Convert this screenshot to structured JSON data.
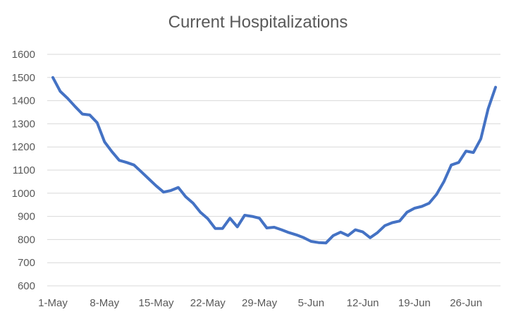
{
  "chart_data": {
    "type": "line",
    "title": "Current Hospitalizations",
    "xlabel": "",
    "ylabel": "",
    "ylim": [
      600,
      1600
    ],
    "y_ticks": [
      600,
      700,
      800,
      900,
      1000,
      1100,
      1200,
      1300,
      1400,
      1500,
      1600
    ],
    "grid": true,
    "legend": "none",
    "x_tick_labels": [
      "1-May",
      "8-May",
      "15-May",
      "22-May",
      "29-May",
      "5-Jun",
      "12-Jun",
      "19-Jun",
      "26-Jun"
    ],
    "x_tick_every": 7,
    "line_color": "#4472C4",
    "series": [
      {
        "values": [
          1500,
          1440,
          1410,
          1375,
          1342,
          1338,
          1305,
          1222,
          1180,
          1142,
          1133,
          1122,
          1092,
          1062,
          1032,
          1005,
          1012,
          1025,
          985,
          957,
          918,
          890,
          848,
          848,
          892,
          855,
          905,
          900,
          892,
          850,
          853,
          842,
          830,
          820,
          808,
          792,
          787,
          785,
          817,
          832,
          817,
          842,
          833,
          808,
          830,
          860,
          873,
          880,
          918,
          935,
          943,
          957,
          995,
          1050,
          1122,
          1133,
          1182,
          1176,
          1235,
          1365,
          1458
        ]
      }
    ]
  }
}
